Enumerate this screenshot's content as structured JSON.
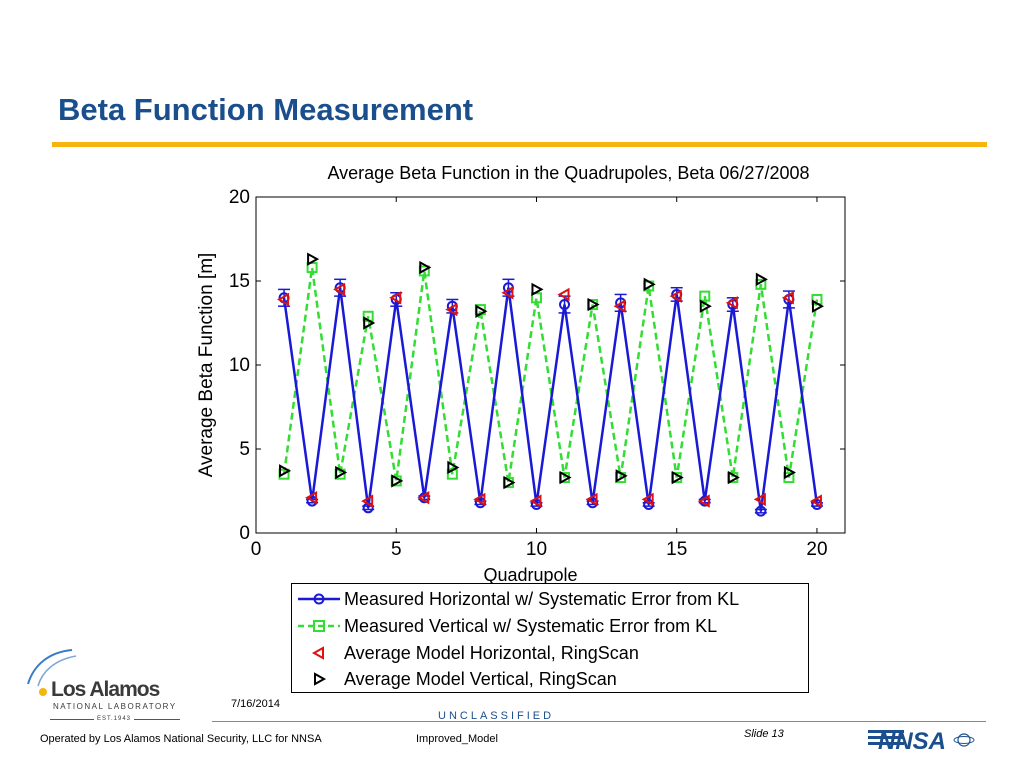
{
  "slide": {
    "title": "Beta Function Measurement",
    "date": "7/16/2014",
    "classification": "UNCLASSIFIED",
    "slide_number": "Slide 13",
    "operated_by": "Operated by Los Alamos National Security, LLC for NNSA",
    "file_name": "Improved_Model",
    "logo_left": {
      "name": "Los Alamos",
      "subtitle": "NATIONAL LABORATORY",
      "est": "EST.1943"
    },
    "logo_right": {
      "name": "NNSA"
    },
    "colors": {
      "title": "#1a4e8c",
      "rule": "#f5b50e"
    }
  },
  "chart_data": {
    "type": "line",
    "title": "Average Beta Function in the Quadrupoles, Beta 06/27/2008",
    "xlabel": "Quadrupole",
    "ylabel": "Average Beta Function [m]",
    "xlim": [
      0,
      21
    ],
    "ylim": [
      0,
      20
    ],
    "xticks": [
      0,
      5,
      10,
      15,
      20
    ],
    "yticks": [
      0,
      5,
      10,
      15,
      20
    ],
    "grid": false,
    "legend_position": "below",
    "series": [
      {
        "name": "Measured Horizontal w/ Systematic Error from KL",
        "style": "line-circle-errorbar",
        "color": "#1a1ad6",
        "x": [
          1,
          2,
          3,
          4,
          5,
          6,
          7,
          8,
          9,
          10,
          11,
          12,
          13,
          14,
          15,
          16,
          17,
          18,
          19,
          20
        ],
        "values": [
          14.0,
          1.9,
          14.6,
          1.5,
          13.9,
          2.1,
          13.5,
          1.8,
          14.6,
          1.7,
          13.6,
          1.8,
          13.7,
          1.7,
          14.2,
          1.9,
          13.6,
          1.3,
          13.9,
          1.7
        ],
        "errors": [
          0.5,
          0.1,
          0.5,
          0.1,
          0.4,
          0.1,
          0.4,
          0.1,
          0.5,
          0.1,
          0.5,
          0.1,
          0.5,
          0.1,
          0.4,
          0.1,
          0.4,
          0.1,
          0.5,
          0.1
        ]
      },
      {
        "name": "Measured Vertical w/ Systematic Error from KL",
        "style": "dashed-square",
        "color": "#33dd33",
        "x": [
          1,
          2,
          3,
          4,
          5,
          6,
          7,
          8,
          9,
          10,
          11,
          12,
          13,
          14,
          15,
          16,
          17,
          18,
          19,
          20
        ],
        "values": [
          3.5,
          15.8,
          3.5,
          12.9,
          3.1,
          15.6,
          3.5,
          13.3,
          3.0,
          14.0,
          3.3,
          13.6,
          3.3,
          14.7,
          3.3,
          14.1,
          3.3,
          14.8,
          3.3,
          13.9
        ]
      },
      {
        "name": "Average Model Horizontal, RingScan",
        "style": "triangle-left",
        "color": "#dd1111",
        "x": [
          1,
          2,
          3,
          4,
          5,
          6,
          7,
          8,
          9,
          10,
          11,
          12,
          13,
          14,
          15,
          16,
          17,
          18,
          19,
          20
        ],
        "values": [
          13.9,
          2.1,
          14.5,
          1.9,
          14.0,
          2.1,
          13.3,
          2.0,
          14.3,
          1.9,
          14.2,
          2.0,
          13.5,
          2.0,
          14.1,
          1.9,
          13.7,
          2.0,
          14.0,
          1.9
        ]
      },
      {
        "name": "Average Model Vertical, RingScan",
        "style": "triangle-right",
        "color": "#000000",
        "x": [
          1,
          2,
          3,
          4,
          5,
          6,
          7,
          8,
          9,
          10,
          11,
          12,
          13,
          14,
          15,
          16,
          17,
          18,
          19,
          20
        ],
        "values": [
          3.7,
          16.3,
          3.6,
          12.5,
          3.1,
          15.8,
          3.9,
          13.2,
          3.0,
          14.5,
          3.3,
          13.6,
          3.4,
          14.8,
          3.3,
          13.5,
          3.3,
          15.1,
          3.6,
          13.5
        ]
      }
    ]
  }
}
